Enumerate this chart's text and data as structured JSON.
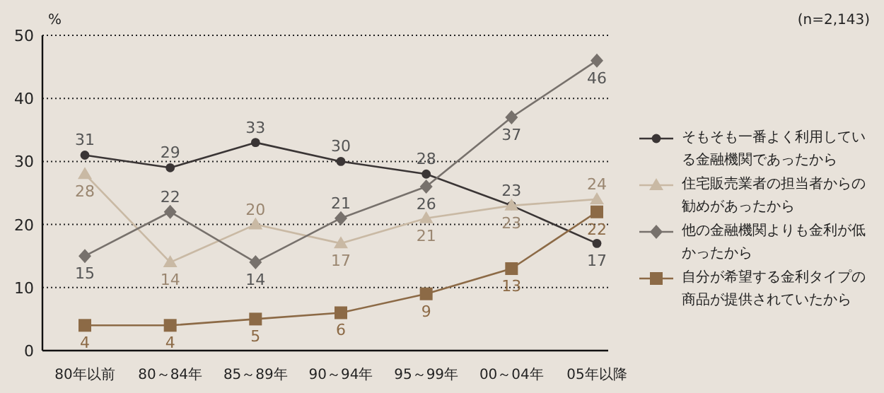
{
  "chart_data": {
    "type": "line",
    "ylabel": "%",
    "annotations": [
      "(n=2,143)"
    ],
    "categories": [
      "80年以前",
      "80～84年",
      "85～89年",
      "90～94年",
      "95～99年",
      "00～04年",
      "05年以降"
    ],
    "series": [
      {
        "name": "そもそも一番よく利用している金融機関であったから",
        "color": "#3a3535",
        "marker": "circle",
        "values": [
          31,
          29,
          33,
          30,
          28,
          23,
          17
        ]
      },
      {
        "name": "住宅販売業者の担当者からの勧めがあったから",
        "color": "#c9b9a4",
        "marker": "triangle",
        "values": [
          28,
          14,
          20,
          17,
          21,
          23,
          24
        ]
      },
      {
        "name": "他の金融機関よりも金利が低かったから",
        "color": "#77716c",
        "marker": "diamond",
        "values": [
          15,
          22,
          14,
          21,
          26,
          37,
          46
        ]
      },
      {
        "name": "自分が希望する金利タイプの商品が提供されていたから",
        "color": "#8c6a46",
        "marker": "square",
        "values": [
          4,
          4,
          5,
          6,
          9,
          13,
          22
        ]
      }
    ],
    "ylim": [
      0,
      50
    ],
    "yticks": [
      0,
      10,
      20,
      30,
      40,
      50
    ],
    "grid": "y",
    "legend": "right",
    "data_labels": true
  }
}
